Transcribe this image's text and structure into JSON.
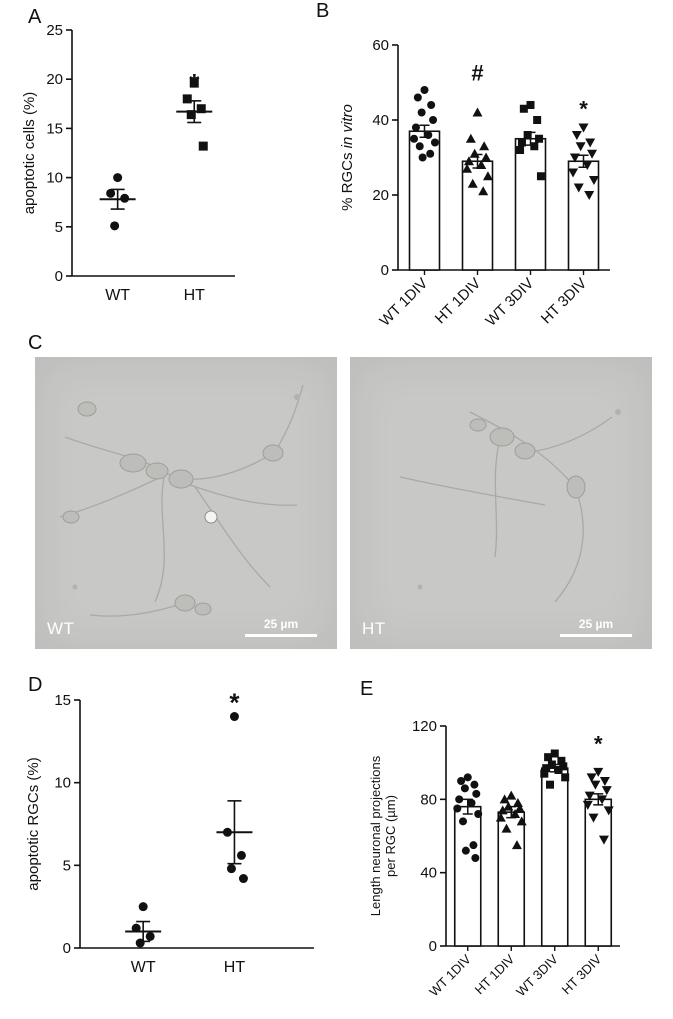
{
  "panel_labels": {
    "A": "A",
    "B": "B",
    "C": "C",
    "D": "D",
    "E": "E"
  },
  "micrographs": {
    "scale_label": "25 µm",
    "items": [
      {
        "label": "WT"
      },
      {
        "label": "HT"
      }
    ]
  },
  "chart_data": [
    {
      "id": "A",
      "type": "scatter",
      "title": "",
      "ylabel": "apoptotic cells (%)",
      "ylim": [
        0,
        25
      ],
      "yticks": [
        0,
        5,
        10,
        15,
        20,
        25
      ],
      "categories": [
        "WT",
        "HT"
      ],
      "series": [
        {
          "category": "WT",
          "marker": "circle",
          "values": [
            10.0,
            8.4,
            7.9,
            5.1
          ],
          "mean": 7.8,
          "sem": 1.0
        },
        {
          "category": "HT",
          "marker": "square",
          "values": [
            19.6,
            18.0,
            17.0,
            16.4,
            13.2
          ],
          "mean": 16.7,
          "sem": 1.1
        }
      ],
      "annotations": [
        {
          "text": "*",
          "category": "HT",
          "y": 18.7
        }
      ]
    },
    {
      "id": "B",
      "type": "bar-scatter",
      "title": "",
      "ylabel": "% RGCs in vitro",
      "ylabel_parts": [
        {
          "text": "% RGCs ",
          "italic": false
        },
        {
          "text": "in vitro",
          "italic": true
        }
      ],
      "ylim": [
        0,
        60
      ],
      "yticks": [
        0,
        20,
        40,
        60
      ],
      "categories": [
        "WT 1DIV",
        "HT 1DIV",
        "WT 3DIV",
        "HT 3DIV"
      ],
      "series": [
        {
          "category": "WT 1DIV",
          "marker": "circle",
          "bar": 37,
          "sem": 1.6,
          "values": [
            48,
            46,
            44,
            42,
            40,
            38,
            36,
            35,
            34,
            33,
            31,
            30
          ]
        },
        {
          "category": "HT 1DIV",
          "marker": "triangle",
          "bar": 29,
          "sem": 1.8,
          "values": [
            42,
            35,
            33,
            31,
            30,
            29,
            28,
            27,
            25,
            23,
            21
          ]
        },
        {
          "category": "WT 3DIV",
          "marker": "square",
          "bar": 35,
          "sem": 1.7,
          "values": [
            44,
            43,
            40,
            36,
            35,
            34,
            33,
            32,
            25
          ]
        },
        {
          "category": "HT 3DIV",
          "marker": "triangle-down",
          "bar": 29,
          "sem": 1.6,
          "values": [
            38,
            36,
            34,
            33,
            31,
            30,
            28,
            26,
            24,
            22,
            20
          ]
        }
      ],
      "annotations": [
        {
          "text": "#",
          "category": "HT 1DIV",
          "y": 50.5
        },
        {
          "text": "*",
          "category": "HT 3DIV",
          "y": 41
        }
      ]
    },
    {
      "id": "D",
      "type": "scatter",
      "title": "",
      "ylabel": "apoptotic RGCs (%)",
      "ylim": [
        0,
        15
      ],
      "yticks": [
        0,
        5,
        10,
        15
      ],
      "categories": [
        "WT",
        "HT"
      ],
      "series": [
        {
          "category": "WT",
          "marker": "circle",
          "values": [
            2.5,
            1.2,
            0.7,
            0.3
          ],
          "mean": 1.0,
          "sem": 0.6
        },
        {
          "category": "HT",
          "marker": "circle",
          "values": [
            14.0,
            7.0,
            5.6,
            4.8,
            4.2
          ],
          "mean": 7.0,
          "sem": 1.9
        }
      ],
      "annotations": [
        {
          "text": "*",
          "category": "HT",
          "y": 14.3
        }
      ]
    },
    {
      "id": "E",
      "type": "bar-scatter",
      "title": "",
      "ylabel": "Length neuronal projections per RGC (µm)",
      "ylabel_lines": [
        "Length neuronal projections",
        "per RGC (µm)"
      ],
      "ylim": [
        0,
        120
      ],
      "yticks": [
        0,
        40,
        80,
        120
      ],
      "categories": [
        "WT 1DIV",
        "HT 1DIV",
        "WT 3DIV",
        "HT 3DIV"
      ],
      "series": [
        {
          "category": "WT 1DIV",
          "marker": "circle",
          "bar": 76,
          "sem": 4,
          "values": [
            92,
            90,
            88,
            86,
            83,
            80,
            78,
            75,
            72,
            68,
            55,
            52,
            48
          ]
        },
        {
          "category": "HT 1DIV",
          "marker": "triangle",
          "bar": 73,
          "sem": 3,
          "values": [
            82,
            80,
            78,
            76,
            75,
            74,
            72,
            70,
            68,
            64,
            55
          ]
        },
        {
          "category": "WT 3DIV",
          "marker": "square",
          "bar": 97,
          "sem": 2,
          "values": [
            105,
            103,
            101,
            99,
            98,
            97,
            96,
            94,
            92,
            88
          ]
        },
        {
          "category": "HT 3DIV",
          "marker": "triangle-down",
          "bar": 80,
          "sem": 3,
          "values": [
            95,
            92,
            90,
            88,
            85,
            82,
            80,
            77,
            74,
            70,
            58
          ]
        }
      ],
      "annotations": [
        {
          "text": "*",
          "category": "HT 3DIV",
          "y": 106
        }
      ]
    }
  ]
}
